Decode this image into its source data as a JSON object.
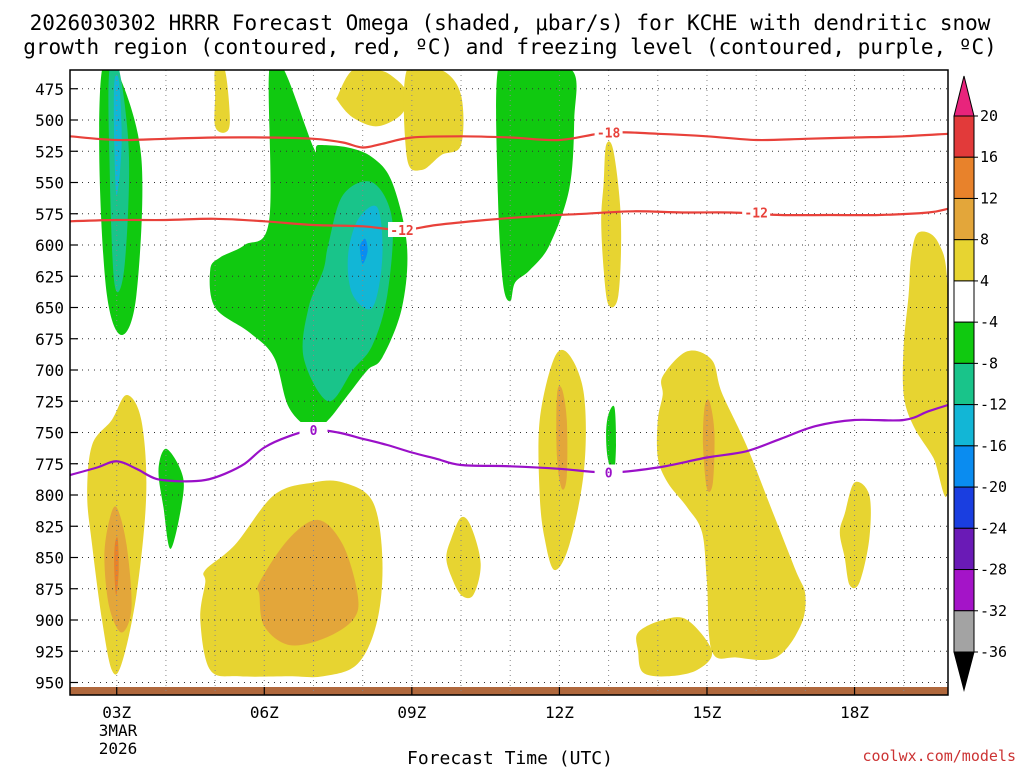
{
  "chart_data": {
    "type": "time-height contour",
    "title_line1": "2026030302 HRRR Forecast Omega (shaded, μbar/s) for KCHE with dendritic snow",
    "title_line2": "growth region (contoured, red, ºC) and freezing level (contoured, purple, ºC)",
    "xlabel": "Forecast Time (UTC)",
    "credit": "coolwx.com/models",
    "date_label": [
      "3MAR",
      "2026"
    ],
    "x_hours": [
      3,
      6,
      9,
      12,
      15,
      18
    ],
    "x_tick_labels": [
      "03Z",
      "06Z",
      "09Z",
      "12Z",
      "15Z",
      "18Z"
    ],
    "xlim_hours": [
      2.05,
      19.9
    ],
    "y_levels": [
      475,
      500,
      525,
      550,
      575,
      600,
      625,
      650,
      675,
      700,
      725,
      750,
      775,
      800,
      825,
      850,
      875,
      900,
      925,
      950
    ],
    "ylim_hpa": [
      460,
      960
    ],
    "colorbar": {
      "labels": [
        "20",
        "16",
        "12",
        "8",
        "4",
        "-4",
        "-8",
        "-12",
        "-16",
        "-20",
        "-24",
        "-28",
        "-32",
        "-36"
      ],
      "colors": [
        "#e8247c",
        "#e23a3a",
        "#e8822b",
        "#e3a63a",
        "#e7d431",
        "#ffffff",
        "#10c910",
        "#19c48a",
        "#12b6d6",
        "#0a8cf0",
        "#1a3ee0",
        "#6a1ab6",
        "#a414c8",
        "#a3a3a3",
        "#000000"
      ]
    },
    "contours": {
      "dgz_minus18": {
        "label": "-18",
        "color": "#e8413a",
        "hours": [
          2.05,
          3.0,
          4.0,
          5.0,
          6.0,
          7.0,
          7.6,
          8.0,
          8.4,
          9.0,
          10.0,
          11.0,
          12.0,
          13.0,
          14.0,
          15.0,
          16.0,
          17.0,
          18.0,
          19.0,
          19.9
        ],
        "hpa": [
          513,
          516,
          515,
          514,
          514,
          515,
          518,
          522,
          519,
          514,
          513,
          514,
          516,
          510,
          511,
          513,
          516,
          515,
          514,
          513,
          511
        ]
      },
      "dgz_minus12": {
        "label": "-12",
        "color": "#e8413a",
        "hours": [
          2.05,
          3.0,
          4.0,
          5.0,
          6.0,
          7.0,
          8.0,
          8.8,
          9.5,
          10.5,
          11.5,
          12.5,
          13.5,
          14.5,
          15.5,
          16.5,
          17.5,
          18.5,
          19.5,
          19.9
        ],
        "hpa": [
          581,
          580,
          580,
          579,
          581,
          584,
          585,
          588,
          584,
          580,
          577,
          575,
          573,
          574,
          574,
          576,
          576,
          576,
          574,
          571
        ]
      },
      "freezing_level_0": {
        "label": "0",
        "color": "#9a10c8",
        "hours": [
          2.05,
          2.6,
          3.0,
          3.4,
          3.8,
          4.3,
          4.8,
          5.2,
          5.6,
          6.0,
          6.5,
          7.0,
          7.5,
          8.0,
          8.5,
          9.0,
          9.5,
          10.0,
          11.0,
          12.0,
          13.0,
          14.0,
          15.0,
          15.8,
          16.5,
          17.2,
          18.0,
          19.0,
          19.5,
          19.9
        ],
        "hpa": [
          784,
          778,
          773,
          779,
          787,
          789,
          788,
          783,
          775,
          762,
          753,
          748,
          750,
          755,
          760,
          766,
          771,
          776,
          777,
          779,
          782,
          778,
          770,
          765,
          755,
          745,
          740,
          740,
          733,
          728
        ]
      }
    },
    "shaded_regions": [
      {
        "omega_bin": "-8 to -4",
        "color": "#10c910",
        "hours": [
          2.7,
          3.0,
          3.5,
          3.4,
          3.1,
          2.8,
          2.65
        ],
        "hpa": [
          460,
          460,
          530,
          640,
          672,
          640,
          540
        ]
      },
      {
        "omega_bin": "-12 to -8",
        "color": "#19c48a",
        "hours": [
          2.85,
          3.05,
          3.25,
          3.15,
          2.95,
          2.85
        ],
        "hpa": [
          460,
          460,
          530,
          620,
          630,
          530
        ]
      },
      {
        "omega_bin": "-16 to -12",
        "color": "#12b6d6",
        "hours": [
          2.95,
          3.05,
          3.1,
          3.0,
          2.95
        ],
        "hpa": [
          470,
          470,
          520,
          560,
          520
        ]
      },
      {
        "omega_bin": "-8 to -4",
        "color": "#10c910",
        "hours": [
          4.0,
          4.3,
          4.35,
          4.1,
          3.95,
          3.85
        ],
        "hpa": [
          763,
          780,
          800,
          843,
          810,
          780
        ]
      },
      {
        "omega_bin": "-8 to -4",
        "color": "#10c910",
        "hours": [
          6.1,
          6.4,
          7.0,
          7.1,
          7.7,
          8.2,
          8.6,
          8.9,
          8.8,
          8.4,
          8.1,
          7.7,
          7.3,
          7.0,
          6.5,
          6.2,
          5.7,
          5.0,
          4.9,
          5.1,
          5.6,
          6.1
        ],
        "hpa": [
          460,
          460,
          522,
          520,
          522,
          530,
          550,
          600,
          650,
          690,
          700,
          720,
          740,
          748,
          730,
          690,
          670,
          650,
          620,
          610,
          600,
          580
        ]
      },
      {
        "omega_bin": "-12 to -8",
        "color": "#19c48a",
        "hours": [
          7.6,
          8.2,
          8.6,
          8.5,
          8.2,
          7.8,
          7.3,
          6.8,
          6.9,
          7.2,
          7.3
        ],
        "hpa": [
          560,
          550,
          580,
          640,
          680,
          700,
          725,
          690,
          650,
          620,
          600
        ]
      },
      {
        "omega_bin": "-16 to -12",
        "color": "#12b6d6",
        "hours": [
          7.9,
          8.3,
          8.4,
          8.2,
          7.8,
          7.7
        ],
        "hpa": [
          580,
          570,
          610,
          650,
          640,
          610
        ]
      },
      {
        "omega_bin": "-20 to -16",
        "color": "#0a8cf0",
        "hours": [
          7.95,
          8.05,
          8.1,
          8.0,
          7.95
        ],
        "hpa": [
          600,
          595,
          605,
          615,
          605
        ]
      },
      {
        "omega_bin": "-8 to -4",
        "color": "#10c910",
        "hours": [
          10.75,
          11.2,
          12.25,
          12.3,
          12.2,
          11.8,
          11.4,
          11.1,
          11.0,
          10.85,
          10.75
        ],
        "hpa": [
          460,
          460,
          460,
          500,
          555,
          600,
          620,
          630,
          645,
          630,
          560
        ]
      },
      {
        "omega_bin": "-8 to -4",
        "color": "#10c910",
        "hours": [
          13.0,
          13.12,
          13.15,
          13.1,
          12.98,
          12.95
        ],
        "hpa": [
          735,
          730,
          760,
          785,
          770,
          750
        ]
      },
      {
        "omega_bin": "4 to 8",
        "color": "#e7d431",
        "hours": [
          5.0,
          5.2,
          5.3,
          5.2,
          5.0,
          5.0
        ],
        "hpa": [
          460,
          460,
          500,
          510,
          505,
          480
        ]
      },
      {
        "omega_bin": "4 to 8",
        "color": "#e7d431",
        "hours": [
          7.5,
          7.8,
          8.3,
          8.6,
          8.9,
          8.8,
          8.3,
          7.8,
          7.5
        ],
        "hpa": [
          480,
          460,
          460,
          465,
          478,
          495,
          505,
          498,
          485
        ]
      },
      {
        "omega_bin": "4 to 8",
        "color": "#e7d431",
        "hours": [
          8.9,
          9.6,
          10.0,
          10.0,
          9.6,
          9.2,
          8.9
        ],
        "hpa": [
          460,
          460,
          480,
          520,
          528,
          540,
          530
        ]
      },
      {
        "omega_bin": "4 to 8",
        "color": "#e7d431",
        "hours": [
          12.95,
          13.1,
          13.25,
          13.2,
          13.0,
          12.9,
          12.85,
          12.9
        ],
        "hpa": [
          520,
          525,
          580,
          640,
          648,
          620,
          580,
          550
        ]
      },
      {
        "omega_bin": "4 to 8",
        "color": "#e7d431",
        "hours": [
          2.5,
          2.9,
          3.2,
          3.5,
          3.6,
          3.4,
          3.1,
          2.9,
          2.7,
          2.5,
          2.4
        ],
        "hpa": [
          760,
          740,
          720,
          740,
          800,
          880,
          935,
          940,
          900,
          840,
          800
        ]
      },
      {
        "omega_bin": "8 to 12",
        "color": "#e3a63a",
        "hours": [
          2.85,
          3.0,
          3.2,
          3.3,
          3.1,
          2.85,
          2.75
        ],
        "hpa": [
          820,
          810,
          840,
          890,
          910,
          890,
          850
        ]
      },
      {
        "omega_bin": "12 to 16",
        "color": "#e8822b",
        "hours": [
          2.96,
          3.02,
          3.04,
          2.99,
          2.95
        ],
        "hpa": [
          840,
          835,
          860,
          880,
          860
        ]
      },
      {
        "omega_bin": "4 to 8",
        "color": "#e7d431",
        "hours": [
          4.8,
          5.4,
          6.2,
          7.0,
          7.6,
          8.2,
          8.4,
          8.3,
          7.9,
          7.2,
          6.5,
          5.5,
          4.9,
          4.7,
          4.8
        ],
        "hpa": [
          860,
          840,
          800,
          790,
          790,
          805,
          850,
          900,
          935,
          945,
          945,
          945,
          940,
          900,
          870
        ]
      },
      {
        "omega_bin": "8 to 12",
        "color": "#e3a63a",
        "hours": [
          5.9,
          6.5,
          7.1,
          7.6,
          7.9,
          7.8,
          7.2,
          6.5,
          6.0,
          5.9
        ],
        "hpa": [
          870,
          835,
          820,
          840,
          880,
          900,
          915,
          920,
          905,
          880
        ]
      },
      {
        "omega_bin": "4 to 8",
        "color": "#e7d431",
        "hours": [
          9.8,
          10.0,
          10.2,
          10.4,
          10.25,
          10.0,
          9.8,
          9.7
        ],
        "hpa": [
          835,
          818,
          825,
          855,
          880,
          880,
          865,
          850
        ]
      },
      {
        "omega_bin": "4 to 8",
        "color": "#e7d431",
        "hours": [
          11.6,
          11.9,
          12.2,
          12.5,
          12.5,
          12.2,
          11.9,
          11.7,
          11.6
        ],
        "hpa": [
          740,
          690,
          688,
          720,
          780,
          840,
          860,
          835,
          800
        ]
      },
      {
        "omega_bin": "8 to 12",
        "color": "#e3a63a",
        "hours": [
          11.95,
          12.05,
          12.15,
          12.15,
          12.05,
          11.95
        ],
        "hpa": [
          720,
          715,
          740,
          785,
          795,
          770
        ]
      },
      {
        "omega_bin": "4 to 8",
        "color": "#e7d431",
        "hours": [
          14.1,
          14.6,
          15.1,
          15.3,
          15.8,
          16.3,
          16.8,
          17.0,
          16.9,
          16.4,
          15.6,
          15.1,
          15.0,
          14.9,
          14.6,
          14.2,
          14.0,
          14.0,
          14.1
        ],
        "hpa": [
          705,
          685,
          692,
          718,
          760,
          810,
          860,
          880,
          905,
          930,
          930,
          925,
          870,
          830,
          810,
          790,
          770,
          740,
          720
        ]
      },
      {
        "omega_bin": "8 to 12",
        "color": "#e3a63a",
        "hours": [
          14.95,
          15.05,
          15.15,
          15.12,
          15.0,
          14.92
        ],
        "hpa": [
          730,
          725,
          750,
          790,
          795,
          760
        ]
      },
      {
        "omega_bin": "4 to 8",
        "color": "#e7d431",
        "hours": [
          13.6,
          14.1,
          14.6,
          15.1,
          14.8,
          14.2,
          13.7,
          13.6
        ],
        "hpa": [
          910,
          900,
          900,
          925,
          940,
          945,
          942,
          925
        ]
      },
      {
        "omega_bin": "4 to 8",
        "color": "#e7d431",
        "hours": [
          17.8,
          18.0,
          18.3,
          18.3,
          18.1,
          17.9,
          17.8,
          17.7
        ],
        "hpa": [
          815,
          790,
          800,
          835,
          870,
          872,
          850,
          830
        ]
      },
      {
        "omega_bin": "4 to 8",
        "color": "#e7d431",
        "hours": [
          19.3,
          19.7,
          19.9,
          19.9,
          19.6,
          19.2,
          19.0,
          19.0,
          19.1,
          19.15
        ],
        "hpa": [
          590,
          598,
          640,
          795,
          770,
          745,
          720,
          680,
          640,
          610
        ]
      }
    ]
  }
}
